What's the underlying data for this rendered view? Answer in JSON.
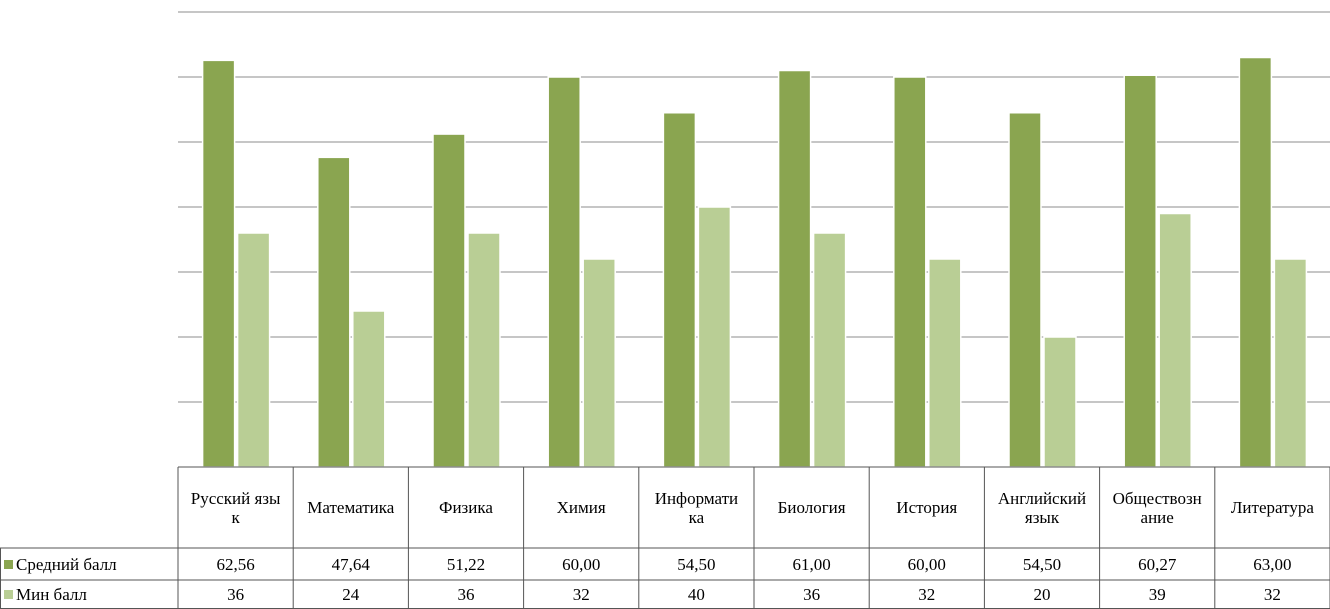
{
  "chart_data": {
    "type": "bar",
    "categories": [
      "Русский язык",
      "Математика",
      "Физика",
      "Химия",
      "Информатика",
      "Биология",
      "История",
      "Английский язык",
      "Обществознание",
      "Литература"
    ],
    "series": [
      {
        "name": "Средний балл",
        "color": "#8aa550",
        "values": [
          62.56,
          47.64,
          51.22,
          60,
          54.5,
          61,
          60,
          54.5,
          60.27,
          63
        ],
        "value_labels": [
          "62,56",
          "47,64",
          "51,22",
          "60,00",
          "54,50",
          "61,00",
          "60,00",
          "54,50",
          "60,27",
          "63,00"
        ]
      },
      {
        "name": "Мин балл",
        "color": "#b9ce95",
        "values": [
          36,
          24,
          36,
          32,
          40,
          36,
          32,
          20,
          39,
          32
        ]
      }
    ],
    "ylim": [
      0,
      70
    ],
    "yticks": [
      0,
      10,
      20,
      30,
      40,
      50,
      60,
      70
    ],
    "grid": true
  }
}
